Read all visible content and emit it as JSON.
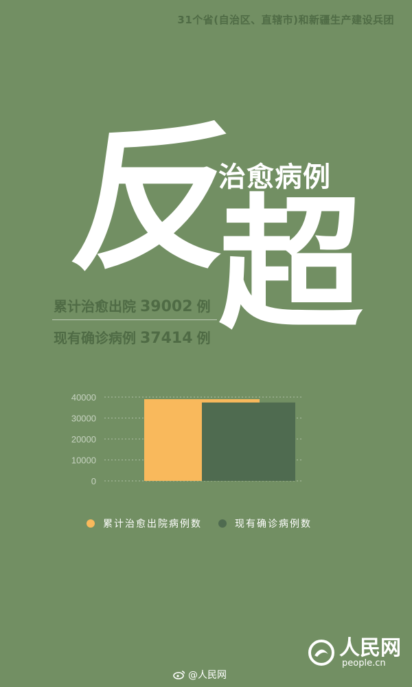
{
  "header": {
    "scope": "31个省(自治区、直辖市)和新疆生产建设兵团"
  },
  "headline": {
    "char1": "反",
    "char2": "超",
    "subtitle": "治愈病例"
  },
  "stats": [
    {
      "label": "累计治愈出院",
      "value": "39002",
      "unit": "例"
    },
    {
      "label": "现有确诊病例",
      "value": "37414",
      "unit": "例"
    }
  ],
  "colors": {
    "background": "#728f63",
    "cured": "#f9b95c",
    "confirmed": "#4f6b50",
    "text_dark": "#4f6b45"
  },
  "chart_data": {
    "type": "bar",
    "categories": [
      "累计治愈出院病例数",
      "现有确诊病例数"
    ],
    "values": [
      39002,
      37414
    ],
    "yticks": [
      "0",
      "10000",
      "20000",
      "30000",
      "40000"
    ],
    "ylim": [
      0,
      40000
    ],
    "grid": true,
    "legend_position": "bottom",
    "title": "",
    "xlabel": "",
    "ylabel": ""
  },
  "legend": [
    {
      "label": "累计治愈出院病例数"
    },
    {
      "label": "现有确诊病例数"
    }
  ],
  "logo": {
    "name": "人民网",
    "url": "people.cn"
  },
  "watermark": {
    "text": "@人民网"
  }
}
